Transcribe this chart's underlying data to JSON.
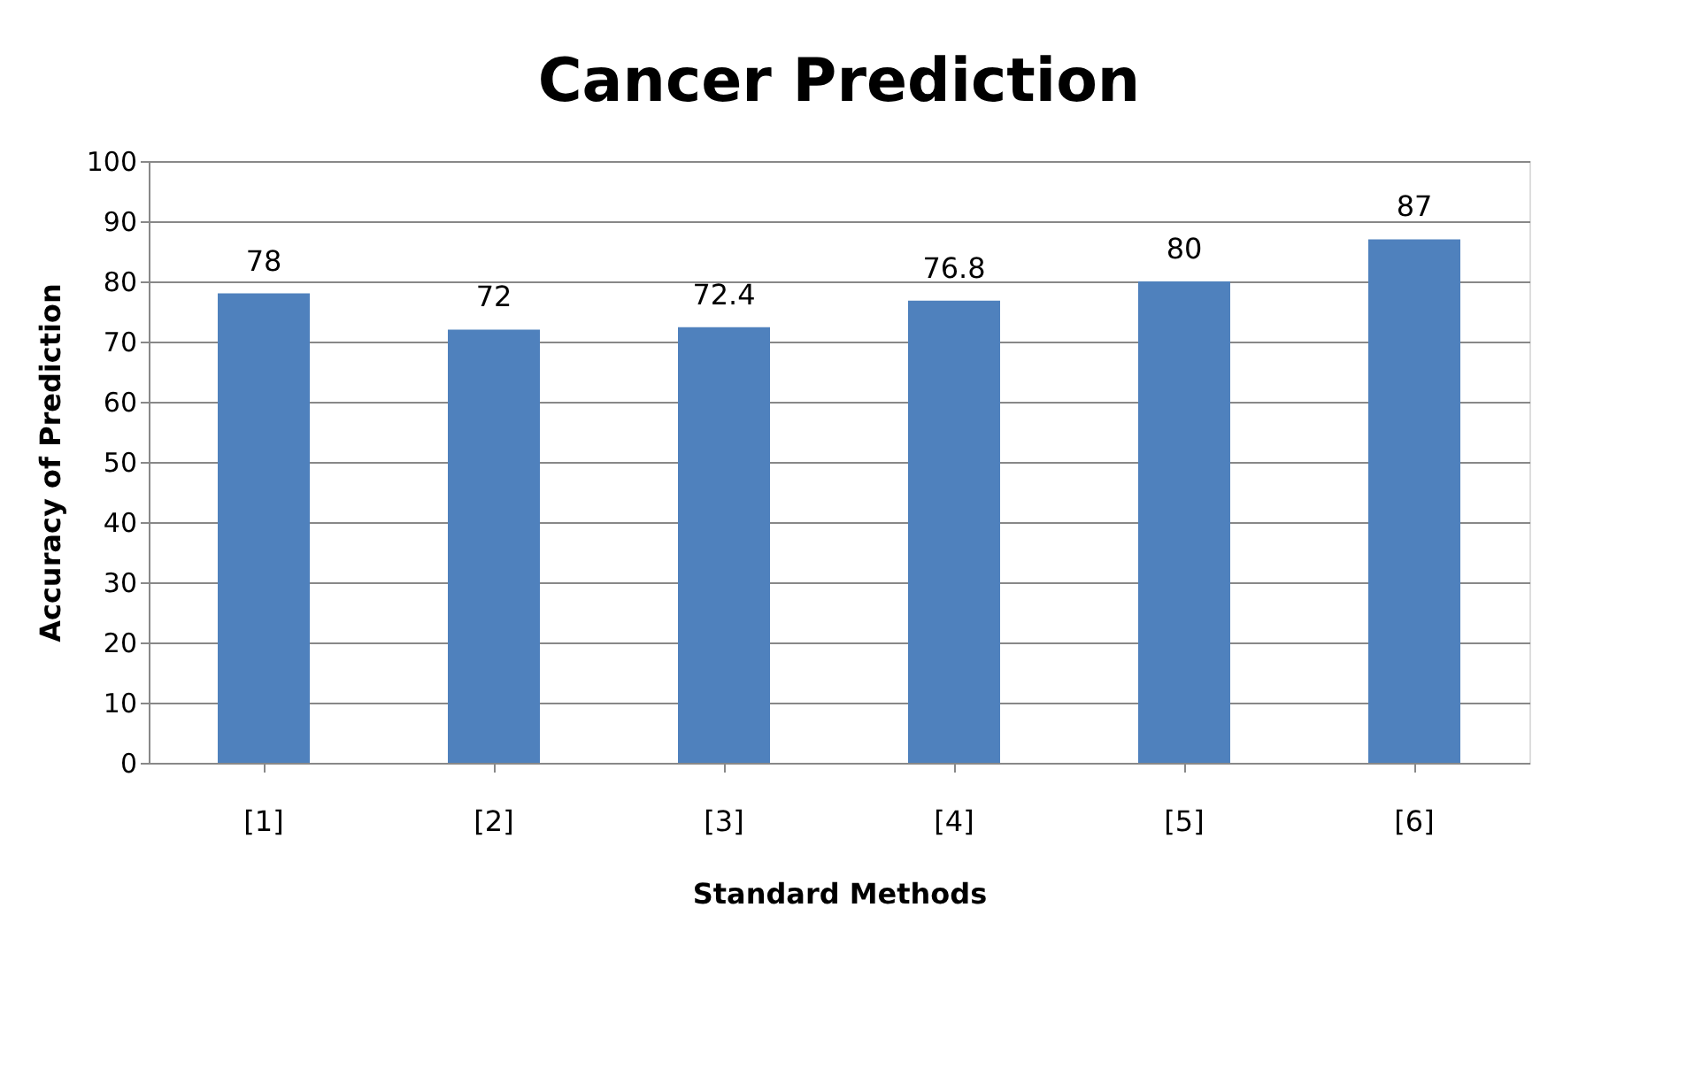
{
  "chart_data": {
    "type": "bar",
    "title": "Cancer Prediction",
    "xlabel": "Standard Methods",
    "ylabel": "Accuracy of Prediction",
    "categories": [
      "[1]",
      "[2]",
      "[3]",
      "[4]",
      "[5]",
      "[6]"
    ],
    "values": [
      78,
      72,
      72.4,
      76.8,
      80,
      87
    ],
    "color": "#4f81bd",
    "ylim": [
      0,
      100
    ],
    "yticks": [
      0,
      10,
      20,
      30,
      40,
      50,
      60,
      70,
      80,
      90,
      100
    ],
    "grid": "y",
    "data_labels": true
  }
}
